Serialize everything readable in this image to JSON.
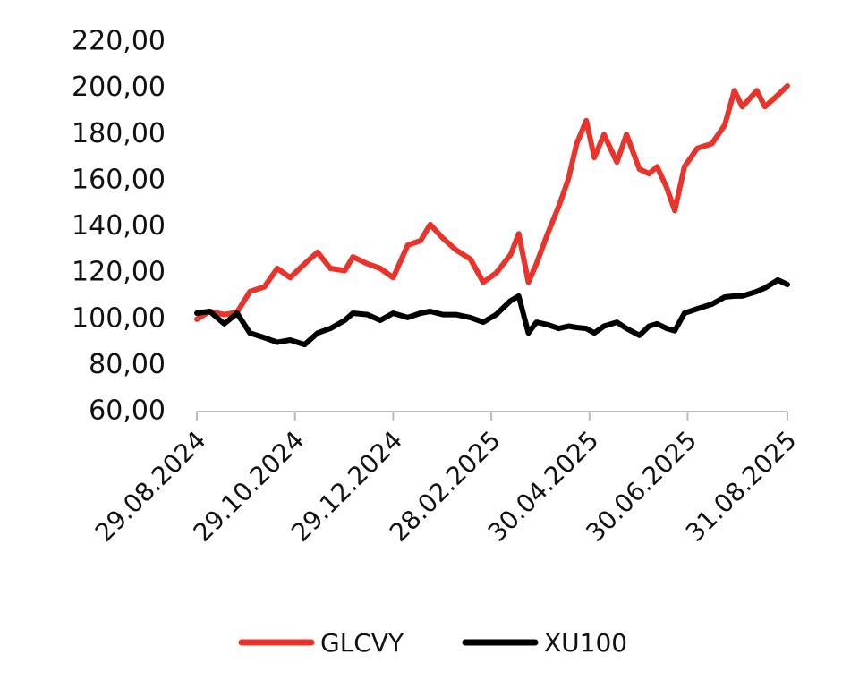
{
  "chart_data": {
    "type": "line",
    "x": [
      "2024-08-29",
      "2024-09-06",
      "2024-09-15",
      "2024-09-23",
      "2024-10-01",
      "2024-10-10",
      "2024-10-18",
      "2024-10-26",
      "2024-11-04",
      "2024-11-12",
      "2024-11-20",
      "2024-11-29",
      "2024-12-04",
      "2024-12-13",
      "2024-12-21",
      "2024-12-29",
      "2025-01-07",
      "2025-01-15",
      "2025-01-21",
      "2025-01-29",
      "2025-02-06",
      "2025-02-15",
      "2025-02-23",
      "2025-03-03",
      "2025-03-12",
      "2025-03-17",
      "2025-03-23",
      "2025-03-28",
      "2025-04-04",
      "2025-04-11",
      "2025-04-17",
      "2025-04-22",
      "2025-04-28",
      "2025-05-03",
      "2025-05-09",
      "2025-05-17",
      "2025-05-23",
      "2025-05-31",
      "2025-06-06",
      "2025-06-11",
      "2025-06-17",
      "2025-06-22",
      "2025-06-28",
      "2025-07-06",
      "2025-07-15",
      "2025-07-23",
      "2025-07-29",
      "2025-08-03",
      "2025-08-12",
      "2025-08-17",
      "2025-08-25",
      "2025-08-31"
    ],
    "series": [
      {
        "name": "GLCVY",
        "color": "#e8342a",
        "values": [
          100,
          103.4,
          102,
          103,
          112,
          114,
          122,
          118,
          124,
          129,
          122,
          121,
          127,
          124,
          122,
          118,
          132,
          134,
          141,
          135,
          130,
          126,
          116,
          120,
          128,
          137,
          116,
          124,
          137,
          149,
          161,
          176,
          186,
          170,
          180,
          168,
          180,
          165,
          163,
          166,
          157,
          147,
          166,
          174,
          176,
          184,
          199,
          192,
          199,
          192,
          197,
          201
        ]
      },
      {
        "name": "XU100",
        "color": "#000000",
        "values": [
          102.6,
          103.4,
          98,
          102.6,
          94,
          92,
          90,
          91,
          89,
          94,
          96,
          99.5,
          102.6,
          102,
          99.5,
          102.6,
          100.7,
          102.6,
          103.4,
          102,
          102,
          100.7,
          98.7,
          102,
          108,
          110,
          94,
          98.7,
          97.6,
          96,
          97,
          96.4,
          96,
          94,
          97,
          98.7,
          96,
          93,
          97,
          98,
          96,
          95,
          102.6,
          104.5,
          106.5,
          109.6,
          110,
          110,
          112,
          113.5,
          117,
          115
        ]
      }
    ],
    "xlim": [
      "2024-08-29",
      "2025-08-31"
    ],
    "xticks": [
      {
        "value": "2024-08-29",
        "label": "29.08.2024"
      },
      {
        "value": "2024-10-29",
        "label": "29.10.2024"
      },
      {
        "value": "2024-12-29",
        "label": "29.12.2024"
      },
      {
        "value": "2025-02-28",
        "label": "28.02.2025"
      },
      {
        "value": "2025-04-30",
        "label": "30.04.2025"
      },
      {
        "value": "2025-06-30",
        "label": "30.06.2025"
      },
      {
        "value": "2025-08-31",
        "label": "31.08.2025"
      }
    ],
    "ylim": [
      60,
      220
    ],
    "yticks": [
      {
        "value": 60,
        "label": "60,00"
      },
      {
        "value": 80,
        "label": "80,00"
      },
      {
        "value": 100,
        "label": "100,00"
      },
      {
        "value": 120,
        "label": "120,00"
      },
      {
        "value": 140,
        "label": "140,00"
      },
      {
        "value": 160,
        "label": "160,00"
      },
      {
        "value": 180,
        "label": "180,00"
      },
      {
        "value": 200,
        "label": "200,00"
      },
      {
        "value": 220,
        "label": "220,00"
      }
    ],
    "legend": "bottom"
  }
}
